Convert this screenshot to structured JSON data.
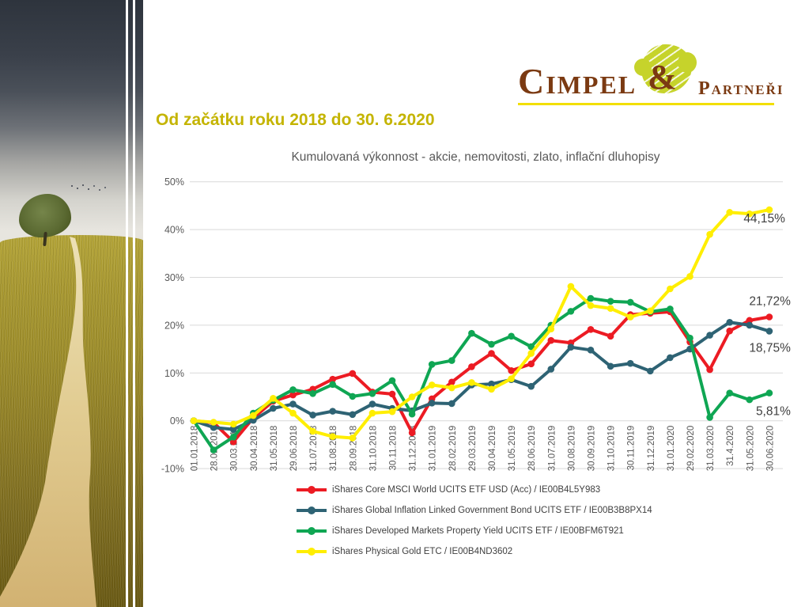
{
  "logo": {
    "brand": "Cimpel",
    "amp": "&",
    "partner": "Partneři",
    "brand_color": "#7b3a12",
    "tree_color": "#c6d32b",
    "underline_color": "#f2df02"
  },
  "heading": {
    "text": "Od začátku roku 2018 do 30. 6.2020",
    "color": "#c4b400"
  },
  "chart_data": {
    "type": "line",
    "title": "Kumulovaná výkonnost - akcie, nemovitosti, zlato, inflační dluhopisy",
    "ylabel": "",
    "xlabel": "",
    "ylim": [
      -10,
      50
    ],
    "grid": true,
    "legend_position": "bottom",
    "y_ticks": [
      "50%",
      "40%",
      "30%",
      "20%",
      "10%",
      "0%",
      "-10%"
    ],
    "y_tick_values": [
      50,
      40,
      30,
      20,
      10,
      0,
      -10
    ],
    "categories": [
      "01.01.2018",
      "28.02.2018",
      "30.03.2018",
      "30.04.2018",
      "31.05.2018",
      "29.06.2018",
      "31.07.2018",
      "31.08.2018",
      "28.09.2018",
      "31.10.2018",
      "30.11.2018",
      "31.12.2018",
      "31.01.2019",
      "28.02.2019",
      "29.03.2019",
      "30.04.2019",
      "31.05.2019",
      "28.06.2019",
      "31.07.2019",
      "30.08.2019",
      "30.09.2019",
      "31.10.2019",
      "30.11.2019",
      "31.12.2019",
      "31.01.2020",
      "29.02.2020",
      "31.03.2020",
      "31.4.2020",
      "31.05.2020",
      "30.06.2020"
    ],
    "series": [
      {
        "name": "iShares Core MSCI World UCITS ETF USD (Acc) / IE00B4L5Y983",
        "color": "#ec1b23",
        "end_label": "21,72%",
        "values": [
          0,
          -0.4,
          -4.4,
          0.6,
          4.1,
          5.4,
          6.6,
          8.7,
          9.9,
          6.0,
          5.6,
          -2.5,
          4.6,
          8.1,
          11.3,
          14.1,
          10.5,
          11.9,
          16.8,
          16.3,
          19.1,
          17.7,
          22.2,
          22.5,
          22.8,
          16.5,
          10.7,
          18.8,
          21.0,
          21.72
        ]
      },
      {
        "name": "iShares Global Inflation Linked Government Bond UCITS ETF / IE00B3B8PX14",
        "color": "#2e6374",
        "end_label": "18,75%",
        "values": [
          0,
          -1.4,
          -1.8,
          0.1,
          2.6,
          3.5,
          1.2,
          2.0,
          1.3,
          3.5,
          2.6,
          2.1,
          3.7,
          3.6,
          7.5,
          7.7,
          8.6,
          7.2,
          10.8,
          15.4,
          14.8,
          11.4,
          12.0,
          10.4,
          13.2,
          15.0,
          17.9,
          20.6,
          20.0,
          18.75
        ]
      },
      {
        "name": "iShares Developed Markets Property Yield UCITS ETF / IE00BFM6T921",
        "color": "#0fa653",
        "end_label": "5,81%",
        "values": [
          0,
          -6.1,
          -3.4,
          1.6,
          4.3,
          6.5,
          5.7,
          7.6,
          5.1,
          5.7,
          8.4,
          1.4,
          11.8,
          12.6,
          18.3,
          16.0,
          17.7,
          15.5,
          20.0,
          22.9,
          25.6,
          25.0,
          24.8,
          22.8,
          23.4,
          17.3,
          0.7,
          5.8,
          4.4,
          5.81
        ]
      },
      {
        "name": "iShares Physical Gold ETC / IE00B4ND3602",
        "color": "#ffee00",
        "end_label": "44,15%",
        "values": [
          0,
          -0.3,
          -0.7,
          1.1,
          4.7,
          1.6,
          -2.2,
          -3.3,
          -3.6,
          1.6,
          1.9,
          5.0,
          7.5,
          6.9,
          8.0,
          6.6,
          8.8,
          14.1,
          19.2,
          28.1,
          24.1,
          23.5,
          21.7,
          23.0,
          27.6,
          30.2,
          39.0,
          43.6,
          43.3,
          44.15
        ]
      }
    ],
    "axis_text_color": "#595959",
    "grid_color": "#d9d9d9",
    "end_label_color": "#404040"
  }
}
